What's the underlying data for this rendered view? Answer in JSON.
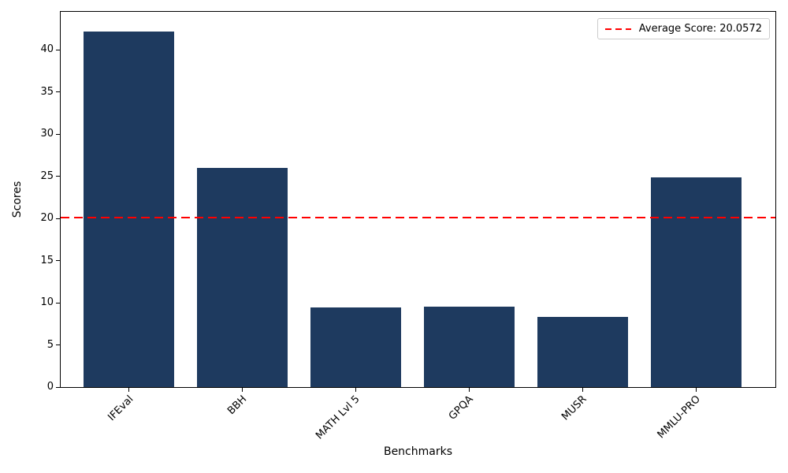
{
  "chart_data": {
    "type": "bar",
    "title": "",
    "xlabel": "Benchmarks",
    "ylabel": "Scores",
    "categories": [
      "IFEval",
      "BBH",
      "MATH Lvl 5",
      "GPQA",
      "MUSR",
      "MMLU-PRO"
    ],
    "values": [
      42.16,
      26.02,
      9.44,
      9.52,
      8.33,
      24.87
    ],
    "ylim": [
      0,
      44.5
    ],
    "xlim": [
      -0.6,
      5.7
    ],
    "yticks": [
      0,
      5,
      10,
      15,
      20,
      25,
      30,
      35,
      40
    ],
    "grid": false,
    "bar_color": "#1e3a5f",
    "bar_width_units": 0.8,
    "average_line": {
      "value": 20.0572,
      "label": "Average Score: 20.0572",
      "color": "#ff0000",
      "style": "dashed"
    },
    "legend_position": "upper right",
    "xtick_rotation": 45,
    "text_color": "#000000",
    "background_color": "#ffffff"
  }
}
